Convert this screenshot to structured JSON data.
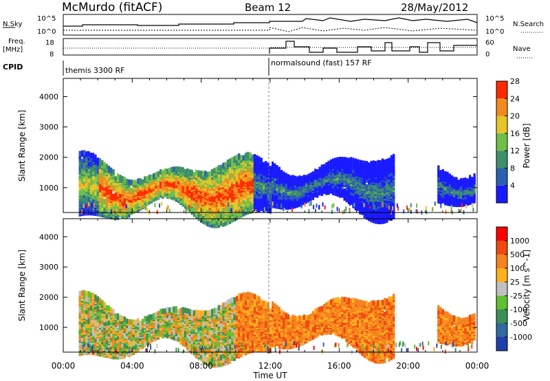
{
  "header": {
    "radar": "McMurdo (fitACF)",
    "beam": "Beam 12",
    "date": "28/May/2012"
  },
  "params": {
    "nsky_label": "N.Sky",
    "nsearch_label": "N.Search",
    "nsky_top_tick": "10^5",
    "nsky_bottom_tick": "10^0",
    "nsearch_top_tick": "10^5",
    "nsearch_bottom_tick": "10^0",
    "freq_label": "Freq.",
    "freq_unit": "[MHz]",
    "freq_top_tick": "18",
    "freq_bottom_tick": "8",
    "nave_label": "Nave",
    "nave_top_tick": "60",
    "nave_bottom_tick": "0",
    "cpid_label": "CPID",
    "cpid_left": "themis 3300 RF",
    "cpid_right": "normalsound (fast) 157 RF"
  },
  "chart_data": [
    {
      "type": "heatmap",
      "name": "power",
      "ylabel": "Slant Range [km]",
      "xlabel": "Time UT",
      "xlim": [
        "00:00",
        "24:00"
      ],
      "ylim": [
        180,
        4600
      ],
      "yticks": [
        1000,
        2000,
        3000,
        4000
      ],
      "xticks": [
        "00:00",
        "04:00",
        "08:00",
        "12:00",
        "16:00",
        "20:00",
        "00:00"
      ],
      "colorbar": {
        "label": "Power [dB]",
        "ticks": [
          "4",
          "8",
          "12",
          "16",
          "20",
          "24",
          "28"
        ],
        "colors": [
          "#1a1aff",
          "#2c5fb2",
          "#3f8f6b",
          "#6fbf4a",
          "#e6c52a",
          "#f28a1f",
          "#ff2a00"
        ]
      }
    },
    {
      "type": "heatmap",
      "name": "velocity",
      "ylabel": "Slant Range [km]",
      "xlabel": "Time UT",
      "xlim": [
        "00:00",
        "24:00"
      ],
      "ylim": [
        180,
        4600
      ],
      "yticks": [
        1000,
        2000,
        3000,
        4000
      ],
      "xticks": [
        "00:00",
        "04:00",
        "08:00",
        "12:00",
        "16:00",
        "20:00",
        "00:00"
      ],
      "colorbar": {
        "label": "Velocity [m s^-1]",
        "ticks": [
          "1000",
          "500",
          "100",
          "25",
          "-25",
          "-100",
          "-500",
          "-1000"
        ],
        "colors": [
          "#1d3fae",
          "#2f6aa0",
          "#3a8f55",
          "#5fc030",
          "#c0c0c0",
          "#ffb01e",
          "#f5821f",
          "#ee4a10",
          "#ff0000"
        ]
      }
    }
  ]
}
